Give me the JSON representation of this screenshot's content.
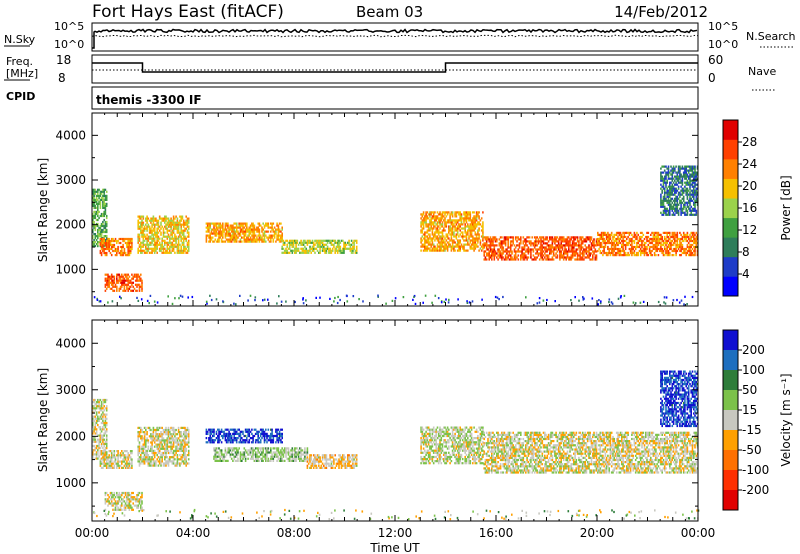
{
  "header": {
    "station": "Fort Hays East (fitACF)",
    "beam": "Beam 03",
    "date": "14/Feb/2012"
  },
  "noise_panel": {
    "left_label": "N.Sky",
    "left_ticks": [
      "10^5",
      "10^0"
    ],
    "right_label": "N.Search",
    "right_ticks": [
      "10^5",
      "10^0"
    ]
  },
  "freq_panel": {
    "left_label_1": "Freq.",
    "left_label_2": "[MHz]",
    "left_ticks": [
      "18",
      "8"
    ],
    "right_label": "Nave",
    "right_ticks": [
      "60",
      "0"
    ]
  },
  "cpid_panel": {
    "label": "CPID",
    "mode": "themis -3300 IF"
  },
  "x_axis": {
    "label": "Time UT",
    "ticks": [
      "00:00",
      "04:00",
      "08:00",
      "12:00",
      "16:00",
      "20:00",
      "00:00"
    ]
  },
  "colors": {
    "power_scale": [
      "#0000ff",
      "#1e3cc8",
      "#2e7d5a",
      "#3fa040",
      "#9bd24b",
      "#f5c000",
      "#ff8000",
      "#ff4000",
      "#e00000"
    ],
    "velocity_scale": [
      "#1010d0",
      "#1e6fbf",
      "#2e7d3a",
      "#7cc24a",
      "#c8c8c0",
      "#ffa000",
      "#ff7000",
      "#ff3000",
      "#e00000"
    ]
  },
  "chart_data": [
    {
      "type": "heatmap",
      "title": "",
      "ylabel": "Slant Range [km]",
      "xlabel": "",
      "xlim": [
        0,
        24
      ],
      "ylim": [
        180,
        4500
      ],
      "y_ticks": [
        1000,
        2000,
        3000,
        4000
      ],
      "colorbar": {
        "label": "Power [dB]",
        "ticks": [
          4,
          8,
          12,
          16,
          20,
          24,
          28
        ],
        "range": [
          0,
          30
        ]
      },
      "regions": [
        {
          "t": [
            0.0,
            0.6
          ],
          "r": [
            1500,
            2800
          ],
          "value": 12
        },
        {
          "t": [
            0.3,
            1.6
          ],
          "r": [
            1300,
            1700
          ],
          "value": 22
        },
        {
          "t": [
            1.8,
            3.8
          ],
          "r": [
            1350,
            2200
          ],
          "value": 18
        },
        {
          "t": [
            4.5,
            7.5
          ],
          "r": [
            1600,
            2050
          ],
          "value": 20
        },
        {
          "t": [
            7.5,
            10.5
          ],
          "r": [
            1350,
            1650
          ],
          "value": 16
        },
        {
          "t": [
            0.5,
            2.0
          ],
          "r": [
            500,
            900
          ],
          "value": 24
        },
        {
          "t": [
            13.0,
            15.5
          ],
          "r": [
            1400,
            2300
          ],
          "value": 20
        },
        {
          "t": [
            15.5,
            20.0
          ],
          "r": [
            1200,
            1700
          ],
          "value": 24
        },
        {
          "t": [
            20.0,
            24.0
          ],
          "r": [
            1300,
            1800
          ],
          "value": 22
        },
        {
          "t": [
            22.5,
            24.0
          ],
          "r": [
            2200,
            3300
          ],
          "value": 8
        }
      ]
    },
    {
      "type": "heatmap",
      "title": "",
      "ylabel": "Slant Range [km]",
      "xlabel": "Time UT",
      "xlim": [
        0,
        24
      ],
      "ylim": [
        180,
        4500
      ],
      "y_ticks": [
        1000,
        2000,
        3000,
        4000
      ],
      "colorbar": {
        "label": "Velocity [m s⁻¹]",
        "ticks": [
          200,
          100,
          50,
          15,
          -15,
          -50,
          -100,
          -200
        ],
        "range": [
          -250,
          250
        ]
      },
      "regions": [
        {
          "t": [
            0.0,
            0.6
          ],
          "r": [
            1500,
            2800
          ],
          "value": 0
        },
        {
          "t": [
            0.3,
            1.6
          ],
          "r": [
            1300,
            1700
          ],
          "value": 0
        },
        {
          "t": [
            1.8,
            3.8
          ],
          "r": [
            1350,
            2200
          ],
          "value": 0
        },
        {
          "t": [
            4.5,
            7.5
          ],
          "r": [
            1850,
            2150
          ],
          "value": 200
        },
        {
          "t": [
            4.8,
            8.5
          ],
          "r": [
            1450,
            1750
          ],
          "value": 40
        },
        {
          "t": [
            8.5,
            10.5
          ],
          "r": [
            1300,
            1600
          ],
          "value": -30
        },
        {
          "t": [
            0.5,
            2.0
          ],
          "r": [
            400,
            800
          ],
          "value": 0
        },
        {
          "t": [
            13.0,
            15.5
          ],
          "r": [
            1400,
            2200
          ],
          "value": 20
        },
        {
          "t": [
            15.5,
            24.0
          ],
          "r": [
            1200,
            2100
          ],
          "value": 0
        },
        {
          "t": [
            22.5,
            24.0
          ],
          "r": [
            2200,
            3400
          ],
          "value": 200
        }
      ]
    }
  ]
}
